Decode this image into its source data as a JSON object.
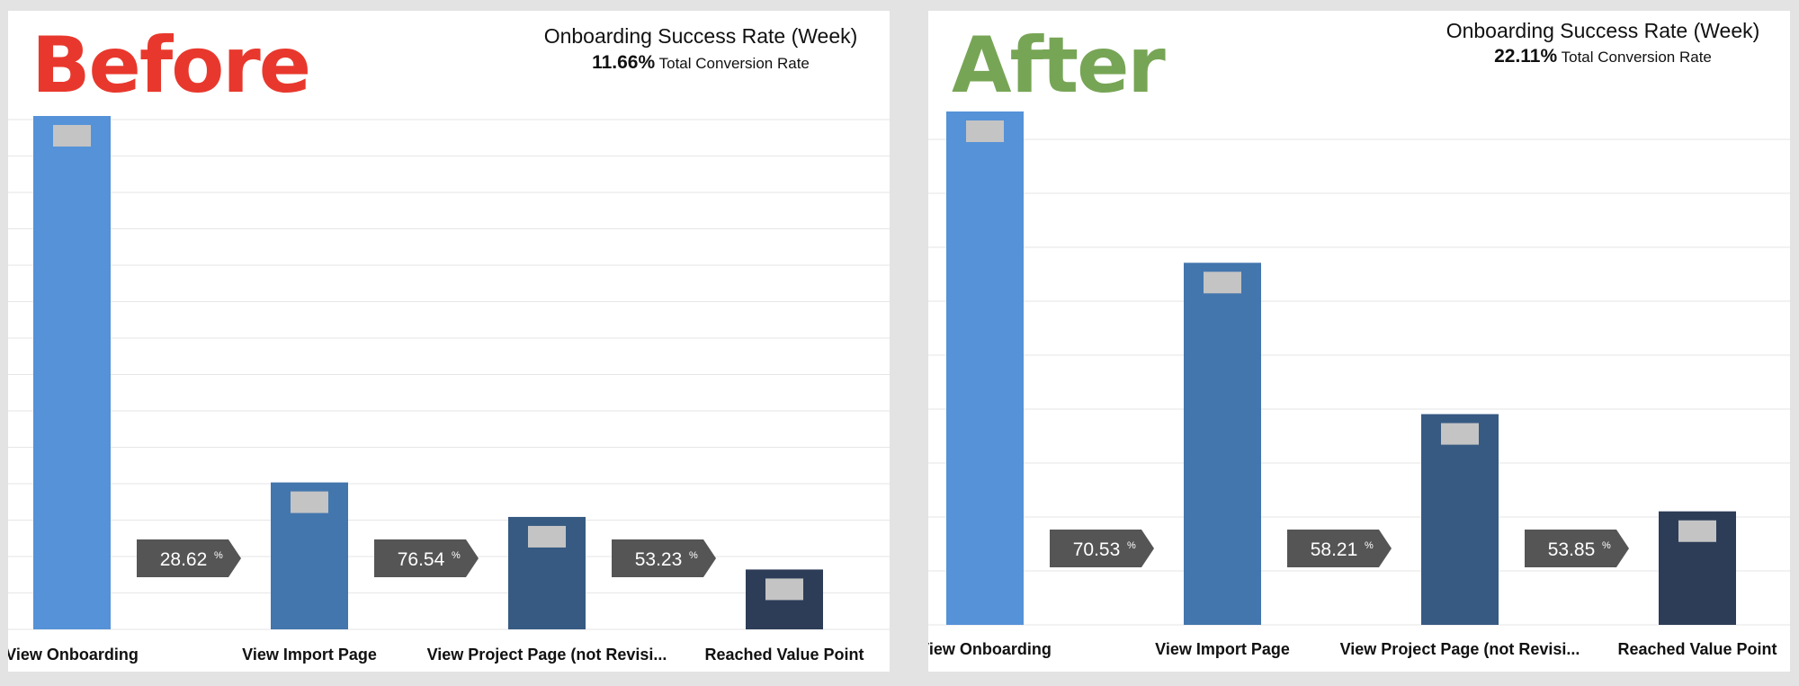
{
  "panels": [
    {
      "label": "Before",
      "label_color": "#e8382d",
      "title": "Onboarding Success Rate (Week)",
      "rate": "11.66%",
      "rate_label": "Total Conversion Rate"
    },
    {
      "label": "After",
      "label_color": "#77a556",
      "title": "Onboarding Success Rate (Week)",
      "rate": "22.11%",
      "rate_label": "Total Conversion Rate"
    }
  ],
  "chart_data": [
    {
      "type": "bar",
      "categories": [
        "View Onboarding",
        "View Import Page",
        "View Project Page (not Revisi...",
        "Reached Value Point"
      ],
      "values": [
        100,
        28.62,
        21.9,
        11.66
      ],
      "ylim": [
        0,
        100
      ],
      "step_rates": [
        "28.62",
        "76.54",
        "53.23"
      ],
      "step_rate_unit": "%",
      "bar_colors": [
        "#5592d8",
        "#4376ad",
        "#375a82",
        "#2d3d58"
      ],
      "grid": true
    },
    {
      "type": "bar",
      "categories": [
        "View Onboarding",
        "View Import Page",
        "View Project Page (not Revisi...",
        "Reached Value Point"
      ],
      "values": [
        100,
        70.53,
        41.05,
        22.11
      ],
      "ylim": [
        0,
        100
      ],
      "step_rates": [
        "70.53",
        "58.21",
        "53.85"
      ],
      "step_rate_unit": "%",
      "bar_colors": [
        "#5592d8",
        "#4376ad",
        "#375a82",
        "#2d3d58"
      ],
      "grid": true
    }
  ]
}
